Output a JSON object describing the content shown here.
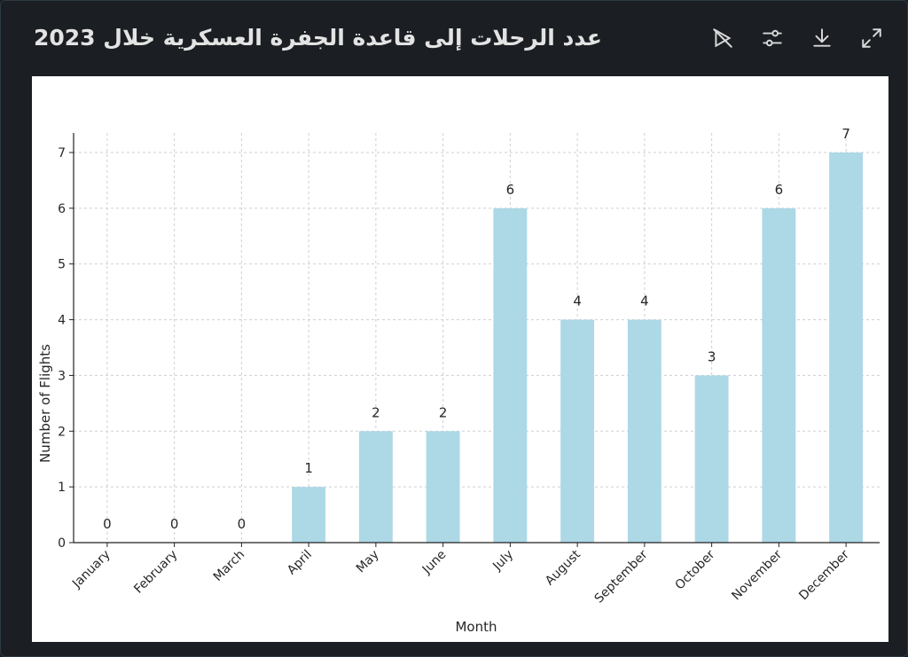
{
  "header": {
    "title": "عدد الرحلات إلى قاعدة الجفرة العسكرية خلال 2023",
    "icons": [
      "eye-off-icon",
      "sliders-icon",
      "download-icon",
      "expand-icon"
    ]
  },
  "colors": {
    "bar": "#add8e6",
    "grid": "#cfcfcf",
    "axis": "#222222",
    "icon": "#d9d9d9"
  },
  "chart_data": {
    "type": "bar",
    "title": "",
    "xlabel": "Month",
    "ylabel": "Number of Flights",
    "categories": [
      "January",
      "February",
      "March",
      "April",
      "May",
      "June",
      "July",
      "August",
      "September",
      "October",
      "November",
      "December"
    ],
    "values": [
      0,
      0,
      0,
      1,
      2,
      2,
      6,
      4,
      4,
      3,
      6,
      7
    ],
    "yticks": [
      0,
      1,
      2,
      3,
      4,
      5,
      6,
      7
    ],
    "ylim": [
      0,
      7.35
    ],
    "grid": true,
    "data_labels": true
  }
}
